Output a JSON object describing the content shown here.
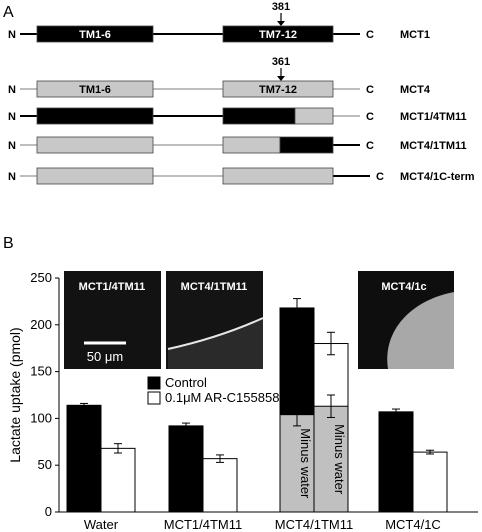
{
  "panel_a": {
    "label": "A",
    "constructs": [
      {
        "name": "MCT1",
        "n": "N",
        "c": "C",
        "n_tail": "black",
        "link": "black",
        "c_tail": "black",
        "segs": [
          {
            "color": "#000000",
            "text": "TM1-6",
            "text_color": "#ffffff"
          },
          {
            "color": "#000000",
            "text": "TM7-12",
            "text_color": "#ffffff"
          }
        ],
        "site": "381"
      },
      {
        "name": "MCT4",
        "n": "N",
        "c": "C",
        "n_tail": "gray",
        "link": "gray",
        "c_tail": "gray",
        "segs": [
          {
            "color": "#c8c8c8",
            "text": "TM1-6",
            "text_color": "#000000"
          },
          {
            "color": "#c8c8c8",
            "text": "TM7-12",
            "text_color": "#000000"
          }
        ],
        "site": "361"
      },
      {
        "name": "MCT1/4TM11",
        "n": "N",
        "c": "C",
        "n_tail": "black",
        "link": "black",
        "c_tail": "gray",
        "segs": [
          {
            "color": "#000000",
            "text": "",
            "text_color": "#ffffff"
          },
          {
            "color": "#000000",
            "text": "",
            "text_color": "#ffffff"
          },
          {
            "color": "#c8c8c8",
            "text": "",
            "text_color": "#000000"
          }
        ],
        "site": ""
      },
      {
        "name": "MCT4/1TM11",
        "n": "N",
        "c": "C",
        "n_tail": "gray",
        "link": "gray",
        "c_tail": "black",
        "segs": [
          {
            "color": "#c8c8c8",
            "text": "",
            "text_color": "#000000"
          },
          {
            "color": "#c8c8c8",
            "text": "",
            "text_color": "#000000"
          },
          {
            "color": "#000000",
            "text": "",
            "text_color": "#ffffff"
          }
        ],
        "site": ""
      },
      {
        "name": "MCT4/1C-term",
        "n": "N",
        "c": "C",
        "n_tail": "gray",
        "link": "gray",
        "c_tail": "black",
        "segs": [
          {
            "color": "#c8c8c8",
            "text": "",
            "text_color": "#000000"
          },
          {
            "color": "#c8c8c8",
            "text": "",
            "text_color": "#000000"
          }
        ],
        "site": ""
      }
    ]
  },
  "panel_b": {
    "label": "B",
    "insets": [
      {
        "title": "MCT1/4TM11",
        "scale_bar": "50 μm"
      },
      {
        "title": "MCT4/1TM11"
      },
      {
        "title": "MCT4/1c"
      }
    ],
    "minus_water_label": "Minus water"
  },
  "chart_data": {
    "type": "bar",
    "title": "",
    "xlabel": "",
    "ylabel": "Lactate uptake (pmol)",
    "ylim": [
      0,
      250
    ],
    "yticks": [
      0,
      50,
      100,
      150,
      200,
      250
    ],
    "categories": [
      "Water",
      "MCT1/4TM11",
      "MCT4/1TM11",
      "MCT4/1C"
    ],
    "series": [
      {
        "name": "Control",
        "color": "#000000",
        "values": [
          114,
          92,
          218,
          107
        ],
        "errors": [
          2,
          3,
          10,
          3
        ]
      },
      {
        "name": "0.1μM AR-C155858",
        "color": "#ffffff",
        "values": [
          68,
          57,
          180,
          64
        ],
        "errors": [
          5,
          4,
          12,
          2
        ]
      }
    ],
    "minus_water": {
      "category": "MCT4/1TM11",
      "values": [
        104,
        113
      ],
      "errors": [
        12,
        12
      ],
      "color": "#c0c0c0"
    },
    "legend": "center-left",
    "grid": false
  }
}
